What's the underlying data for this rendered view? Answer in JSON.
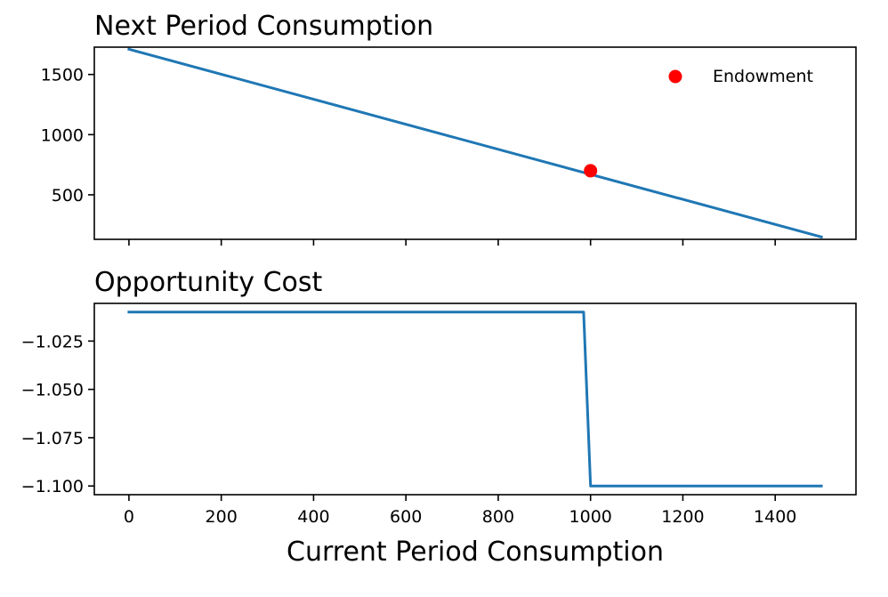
{
  "colors": {
    "series": "#1f77b4",
    "endowment": "#ff0000",
    "axes": "#000000",
    "background": "#ffffff"
  },
  "chart_data": [
    {
      "type": "line",
      "title": "Next Period Consumption",
      "xlabel": "",
      "ylabel": "",
      "xlim": [
        -75,
        1575
      ],
      "ylim": [
        130,
        1727
      ],
      "xticks": [
        0,
        200,
        400,
        600,
        800,
        1000,
        1200,
        1400
      ],
      "xtick_labels_visible": false,
      "yticks": [
        500,
        1000,
        1500
      ],
      "ytick_labels": [
        "500",
        "1000",
        "1500"
      ],
      "grid": false,
      "legend": {
        "position": "top-right",
        "entries": [
          "Endowment"
        ]
      },
      "series": [
        {
          "x": [
            0,
            1500
          ],
          "y": [
            1710,
            150
          ],
          "color": "#1f77b4"
        }
      ],
      "points": [
        {
          "name": "Endowment",
          "x": 1000,
          "y": 700,
          "color": "#ff0000"
        }
      ]
    },
    {
      "type": "line",
      "title": "Opportunity Cost",
      "xlabel": "Current Period Consumption",
      "ylabel": "",
      "xlim": [
        -75,
        1575
      ],
      "ylim": [
        -1.1045,
        -1.0055
      ],
      "xticks": [
        0,
        200,
        400,
        600,
        800,
        1000,
        1200,
        1400
      ],
      "xtick_labels": [
        "0",
        "200",
        "400",
        "600",
        "800",
        "1000",
        "1200",
        "1400"
      ],
      "yticks": [
        -1.025,
        -1.05,
        -1.075,
        -1.1
      ],
      "ytick_labels": [
        "−1.025",
        "−1.050",
        "−1.075",
        "−1.100"
      ],
      "grid": false,
      "series": [
        {
          "x": [
            0,
            985,
            1000,
            1500
          ],
          "y": [
            -1.01,
            -1.01,
            -1.1,
            -1.1
          ],
          "color": "#1f77b4"
        }
      ]
    }
  ]
}
